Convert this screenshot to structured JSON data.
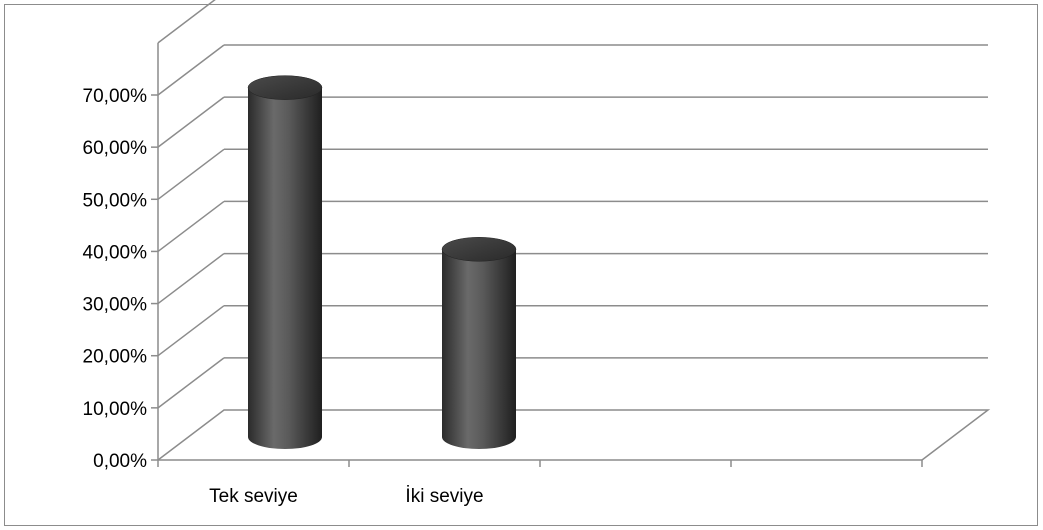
{
  "chart_data": {
    "type": "bar",
    "style": "3d-cylinder",
    "categories": [
      "Tek seviye",
      "İki seviye"
    ],
    "values": [
      0.67,
      0.36
    ],
    "value_format": "percent",
    "yticks": [
      "0,00%",
      "10,00%",
      "20,00%",
      "30,00%",
      "40,00%",
      "50,00%",
      "60,00%",
      "70,00%"
    ],
    "ylim": [
      0,
      0.7
    ],
    "grid": true,
    "bar_color": "#4a4a4a",
    "grid_color": "#8c8c8c",
    "title": "",
    "xlabel": "",
    "ylabel": ""
  }
}
